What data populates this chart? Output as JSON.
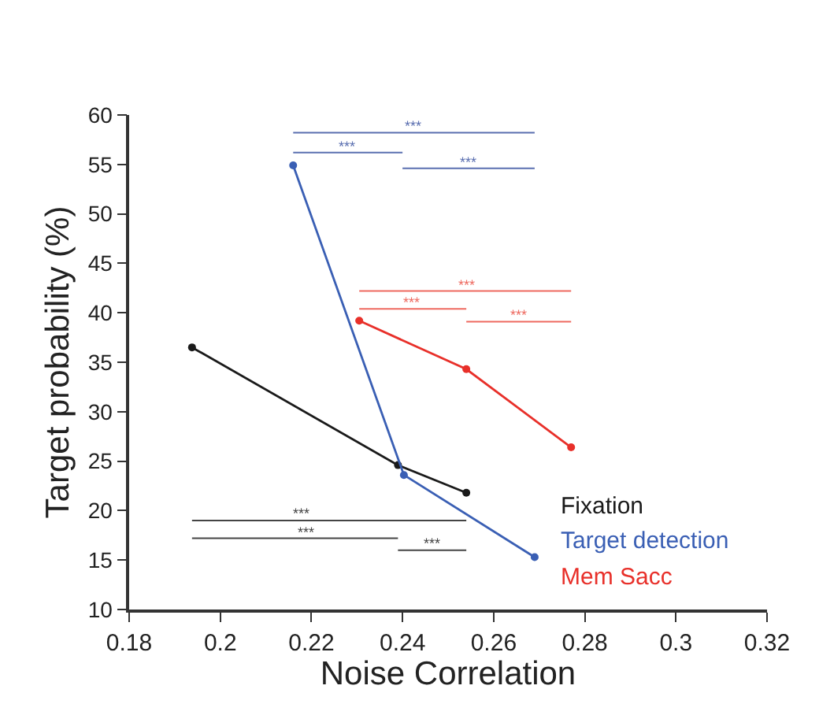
{
  "chart_data": {
    "type": "line",
    "xlabel": "Noise Correlation",
    "ylabel": "Target probability (%)",
    "xlim": [
      0.18,
      0.32
    ],
    "xticks": [
      0.18,
      0.2,
      0.22,
      0.24,
      0.26,
      0.28,
      0.3,
      0.32
    ],
    "ylim": [
      10,
      60
    ],
    "yticks": [
      10,
      15,
      20,
      25,
      30,
      35,
      40,
      45,
      50,
      55,
      60
    ],
    "marker": "circle",
    "series": [
      {
        "name": "Fixation",
        "color": "#1a1a1a",
        "x": [
          0.1938,
          0.239,
          0.254
        ],
        "values": [
          36.5,
          24.6,
          21.8
        ]
      },
      {
        "name": "Target detection",
        "color": "#3a5fb4",
        "x": [
          0.216,
          0.2403,
          0.269
        ],
        "values": [
          54.9,
          23.6,
          15.3
        ]
      },
      {
        "name": "Mem Sacc",
        "color": "#e8302a",
        "x": [
          0.2305,
          0.254,
          0.277
        ],
        "values": [
          39.2,
          34.3,
          26.4
        ]
      },
      {
        "type": "line",
        "marker": "none",
        "color": "#5a6fb0",
        "x": [
          0.216,
          0.269
        ],
        "values": [
          58.2,
          58.2
        ]
      },
      {
        "type": "line",
        "marker": "none",
        "color": "#5a6fb0",
        "x": [
          0.216,
          0.24
        ],
        "values": [
          56.2,
          56.2
        ]
      },
      {
        "type": "line",
        "marker": "none",
        "color": "#5a6fb0",
        "x": [
          0.24,
          0.269
        ],
        "values": [
          54.6,
          54.6
        ]
      },
      {
        "type": "line",
        "marker": "none",
        "color": "#ee6a60",
        "x": [
          0.2305,
          0.277
        ],
        "values": [
          42.2,
          42.2
        ]
      },
      {
        "type": "line",
        "marker": "none",
        "color": "#ee6a60",
        "x": [
          0.2305,
          0.254
        ],
        "values": [
          40.4,
          40.4
        ]
      },
      {
        "type": "line",
        "marker": "none",
        "color": "#ee6a60",
        "x": [
          0.254,
          0.277
        ],
        "values": [
          39.1,
          39.1
        ]
      },
      {
        "type": "line",
        "marker": "none",
        "color": "#444444",
        "x": [
          0.1938,
          0.254
        ],
        "values": [
          19.0,
          19.0
        ]
      },
      {
        "type": "line",
        "marker": "none",
        "color": "#444444",
        "x": [
          0.1938,
          0.239
        ],
        "values": [
          17.2,
          17.2
        ]
      },
      {
        "type": "line",
        "marker": "none",
        "color": "#444444",
        "x": [
          0.239,
          0.254
        ],
        "values": [
          16.0,
          16.0
        ]
      }
    ],
    "annotations": [
      {
        "text": "***",
        "x": 0.2425,
        "y": 58.2
      },
      {
        "text": "***",
        "x": 0.228,
        "y": 56.2
      },
      {
        "text": "***",
        "x": 0.2545,
        "y": 54.6
      },
      {
        "text": "***",
        "x": 0.254,
        "y": 42.2
      },
      {
        "text": "***",
        "x": 0.242,
        "y": 40.4
      },
      {
        "text": "***",
        "x": 0.2655,
        "y": 39.1
      },
      {
        "text": "***",
        "x": 0.218,
        "y": 19.0
      },
      {
        "text": "***",
        "x": 0.219,
        "y": 17.2
      },
      {
        "text": "***",
        "x": 0.2465,
        "y": 16.0
      }
    ]
  }
}
